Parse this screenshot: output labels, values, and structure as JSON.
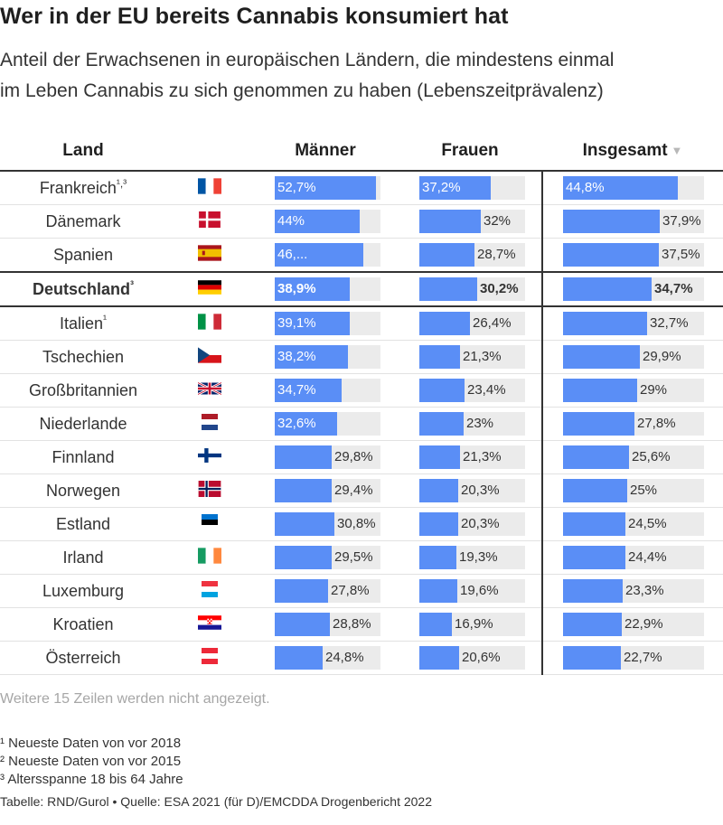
{
  "title": "Wer in der EU bereits Cannabis konsumiert hat",
  "subtitle_lines": [
    "Anteil der Erwachsenen in europäischen Ländern, die mindestens einmal",
    "im Leben Cannabis zu sich genommen zu haben (Lebenszeitprävalenz)"
  ],
  "headers": {
    "land": "Land",
    "maenner": "Männer",
    "frauen": "Frauen",
    "insgesamt": "Insgesamt",
    "sort_icon": "▼"
  },
  "chart_data": {
    "type": "table",
    "value_max": 55,
    "columns": [
      "Männer",
      "Frauen",
      "Insgesamt"
    ],
    "sort_column": "Insgesamt",
    "sort_direction": "descending",
    "rows": [
      {
        "name": "Frankreich",
        "note": "¹,³",
        "flag": "fr",
        "highlight": false,
        "maenner": 52.7,
        "frauen": 37.2,
        "insgesamt": 44.8,
        "maenner_label": "52,7%",
        "frauen_label": "37,2%",
        "insgesamt_label": "44,8%"
      },
      {
        "name": "Dänemark",
        "note": "",
        "flag": "dk",
        "highlight": false,
        "maenner": 44,
        "frauen": 32,
        "insgesamt": 37.9,
        "maenner_label": "44%",
        "frauen_label": "32%",
        "insgesamt_label": "37,9%"
      },
      {
        "name": "Spanien",
        "note": "",
        "flag": "es",
        "highlight": false,
        "maenner": 46,
        "frauen": 28.7,
        "insgesamt": 37.5,
        "maenner_label": "46,...",
        "frauen_label": "28,7%",
        "insgesamt_label": "37,5%"
      },
      {
        "name": "Deutschland",
        "note": "³",
        "flag": "de",
        "highlight": true,
        "maenner": 38.9,
        "frauen": 30.2,
        "insgesamt": 34.7,
        "maenner_label": "38,9%",
        "frauen_label": "30,2%",
        "insgesamt_label": "34,7%"
      },
      {
        "name": "Italien",
        "note": "¹",
        "flag": "it",
        "highlight": false,
        "maenner": 39.1,
        "frauen": 26.4,
        "insgesamt": 32.7,
        "maenner_label": "39,1%",
        "frauen_label": "26,4%",
        "insgesamt_label": "32,7%"
      },
      {
        "name": "Tschechien",
        "note": "",
        "flag": "cz",
        "highlight": false,
        "maenner": 38.2,
        "frauen": 21.3,
        "insgesamt": 29.9,
        "maenner_label": "38,2%",
        "frauen_label": "21,3%",
        "insgesamt_label": "29,9%"
      },
      {
        "name": "Großbritannien",
        "note": "",
        "flag": "gb",
        "highlight": false,
        "maenner": 34.7,
        "frauen": 23.4,
        "insgesamt": 29,
        "maenner_label": "34,7%",
        "frauen_label": "23,4%",
        "insgesamt_label": "29%"
      },
      {
        "name": "Niederlande",
        "note": "",
        "flag": "nl",
        "highlight": false,
        "maenner": 32.6,
        "frauen": 23,
        "insgesamt": 27.8,
        "maenner_label": "32,6%",
        "frauen_label": "23%",
        "insgesamt_label": "27,8%"
      },
      {
        "name": "Finnland",
        "note": "",
        "flag": "fi",
        "highlight": false,
        "maenner": 29.8,
        "frauen": 21.3,
        "insgesamt": 25.6,
        "maenner_label": "29,8%",
        "frauen_label": "21,3%",
        "insgesamt_label": "25,6%"
      },
      {
        "name": "Norwegen",
        "note": "",
        "flag": "no",
        "highlight": false,
        "maenner": 29.4,
        "frauen": 20.3,
        "insgesamt": 25,
        "maenner_label": "29,4%",
        "frauen_label": "20,3%",
        "insgesamt_label": "25%"
      },
      {
        "name": "Estland",
        "note": "",
        "flag": "ee",
        "highlight": false,
        "maenner": 30.8,
        "frauen": 20.3,
        "insgesamt": 24.5,
        "maenner_label": "30,8%",
        "frauen_label": "20,3%",
        "insgesamt_label": "24,5%"
      },
      {
        "name": "Irland",
        "note": "",
        "flag": "ie",
        "highlight": false,
        "maenner": 29.5,
        "frauen": 19.3,
        "insgesamt": 24.4,
        "maenner_label": "29,5%",
        "frauen_label": "19,3%",
        "insgesamt_label": "24,4%"
      },
      {
        "name": "Luxemburg",
        "note": "",
        "flag": "lu",
        "highlight": false,
        "maenner": 27.8,
        "frauen": 19.6,
        "insgesamt": 23.3,
        "maenner_label": "27,8%",
        "frauen_label": "19,6%",
        "insgesamt_label": "23,3%"
      },
      {
        "name": "Kroatien",
        "note": "",
        "flag": "hr",
        "highlight": false,
        "maenner": 28.8,
        "frauen": 16.9,
        "insgesamt": 22.9,
        "maenner_label": "28,8%",
        "frauen_label": "16,9%",
        "insgesamt_label": "22,9%"
      },
      {
        "name": "Österreich",
        "note": "",
        "flag": "at",
        "highlight": false,
        "maenner": 24.8,
        "frauen": 20.6,
        "insgesamt": 22.7,
        "maenner_label": "24,8%",
        "frauen_label": "20,6%",
        "insgesamt_label": "22,7%"
      }
    ]
  },
  "colors": {
    "bar": "#5a8ef6",
    "track": "#ebebeb",
    "text": "#333333",
    "muted": "#a6a6a6"
  },
  "more_rows_text": "Weitere 15 Zeilen werden nicht angezeigt.",
  "footnotes": [
    "¹ Neueste Daten von vor 2018",
    "² Neueste Daten von vor 2015",
    "³ Altersspanne 18 bis 64 Jahre"
  ],
  "source": "Tabelle: RND/Gurol • Quelle: ESA 2021 (für D)/EMCDDA Drogenbericht 2022"
}
